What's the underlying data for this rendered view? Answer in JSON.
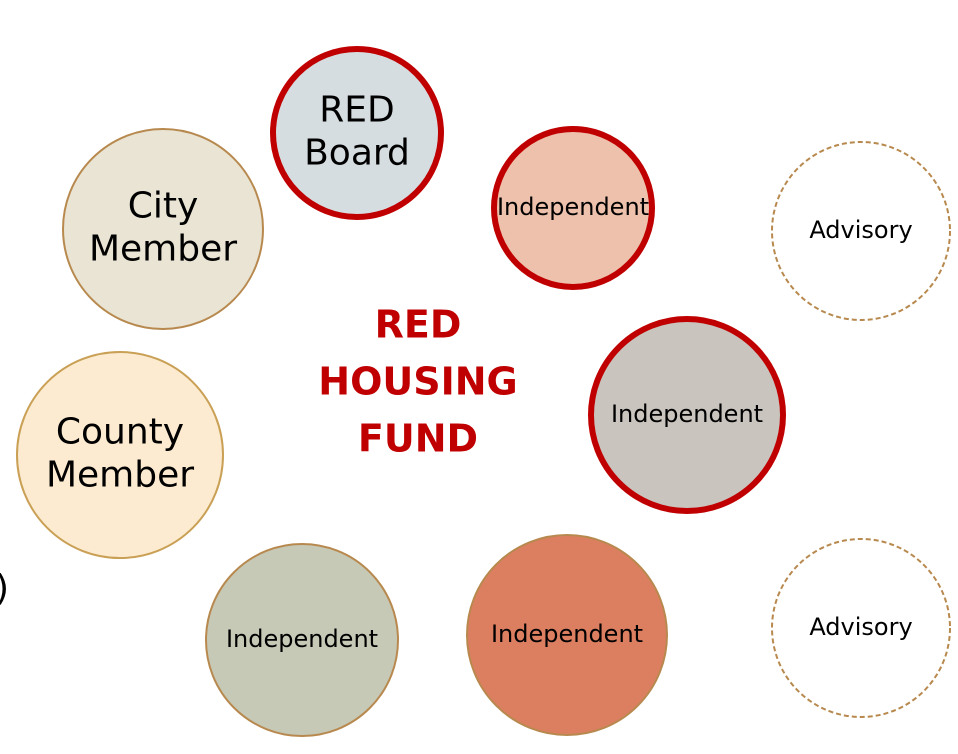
{
  "nodes": [
    {
      "label": [
        "RED",
        "Board"
      ]
    },
    {
      "label": [
        "Independent"
      ]
    },
    {
      "label": [
        "Advisory"
      ]
    },
    {
      "label": [
        "City",
        "Member"
      ]
    },
    {
      "label": [
        "County",
        "Member"
      ]
    },
    {
      "label": [
        "Independent"
      ]
    },
    {
      "label": [
        "Independent"
      ]
    },
    {
      "label": [
        "Independent"
      ]
    },
    {
      "label": [
        "Advisory"
      ]
    }
  ],
  "center": {
    "label": [
      "RED",
      "HOUSING",
      "FUND"
    ]
  },
  "edge_text": ")"
}
